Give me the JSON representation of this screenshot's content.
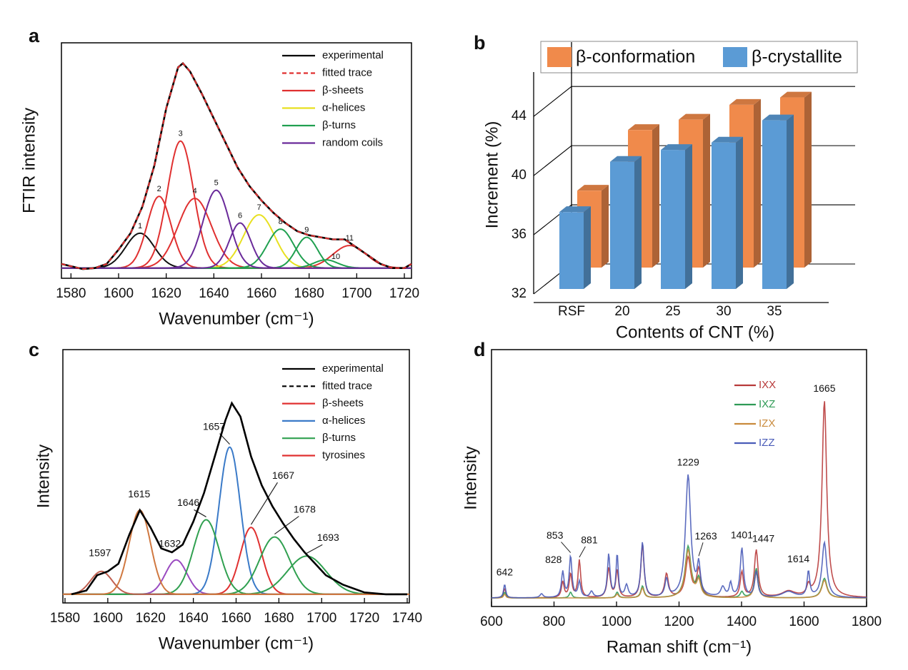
{
  "chart_data": [
    {
      "type": "line",
      "panel": "a",
      "xlabel": "Wavenumber (cm⁻¹)",
      "ylabel": "FTIR intensity",
      "xlim": [
        1576,
        1723
      ],
      "ylim": [
        -0.05,
        1.1
      ],
      "xticks": [
        1580,
        1600,
        1620,
        1640,
        1660,
        1680,
        1700,
        1720
      ],
      "x": [
        1576,
        1585,
        1590,
        1595,
        1600,
        1605,
        1610,
        1615,
        1620,
        1625,
        1627,
        1630,
        1635,
        1640,
        1645,
        1650,
        1655,
        1660,
        1665,
        1670,
        1675,
        1680,
        1685,
        1690,
        1695,
        1700,
        1705,
        1710,
        1715,
        1720,
        1723
      ],
      "series": [
        {
          "name": "experimental",
          "color": "#000000",
          "values": [
            0.02,
            -0.005,
            0,
            0.02,
            0.09,
            0.17,
            0.3,
            0.5,
            0.78,
            0.98,
            1.0,
            0.96,
            0.85,
            0.73,
            0.61,
            0.49,
            0.4,
            0.33,
            0.27,
            0.22,
            0.18,
            0.16,
            0.15,
            0.14,
            0.14,
            0.1,
            0.06,
            0.02,
            0,
            0,
            0.02
          ]
        },
        {
          "name": "fitted trace",
          "color": "#e03030",
          "dash": true,
          "values": [
            0.02,
            -0.005,
            0,
            0.02,
            0.09,
            0.17,
            0.3,
            0.5,
            0.78,
            0.98,
            1.0,
            0.96,
            0.85,
            0.73,
            0.61,
            0.49,
            0.4,
            0.33,
            0.27,
            0.22,
            0.18,
            0.16,
            0.15,
            0.14,
            0.14,
            0.1,
            0.06,
            0.02,
            0,
            0,
            0.02
          ]
        }
      ],
      "components": [
        {
          "name": "β-sheets",
          "color": "#e03030",
          "peaks": [
            {
              "n": 1,
              "center": 1609,
              "height": 0.17,
              "width": 6,
              "color": "#111111"
            },
            {
              "n": 2,
              "center": 1617,
              "height": 0.35,
              "width": 5
            },
            {
              "n": 3,
              "center": 1626,
              "height": 0.62,
              "width": 5.5
            },
            {
              "n": 4,
              "center": 1632,
              "height": 0.34,
              "width": 7
            },
            {
              "n": 11,
              "center": 1697,
              "height": 0.11,
              "width": 7
            }
          ]
        },
        {
          "name": "α-helices",
          "color": "#e8e020",
          "peaks": [
            {
              "n": 7,
              "center": 1659,
              "height": 0.26,
              "width": 6.5
            }
          ]
        },
        {
          "name": "β-turns",
          "color": "#20a050",
          "peaks": [
            {
              "n": 8,
              "center": 1668,
              "height": 0.19,
              "width": 5.5
            },
            {
              "n": 9,
              "center": 1679,
              "height": 0.15,
              "width": 4.5
            },
            {
              "n": 10,
              "center": 1687,
              "height": 0.04,
              "width": 5
            }
          ]
        },
        {
          "name": "random coils",
          "color": "#6a2a9a",
          "peaks": [
            {
              "n": 5,
              "center": 1641,
              "height": 0.38,
              "width": 5.5
            },
            {
              "n": 6,
              "center": 1651,
              "height": 0.22,
              "width": 4.5
            }
          ]
        }
      ]
    },
    {
      "type": "bar",
      "panel": "b",
      "xlabel": "Contents of CNT (%)",
      "ylabel": "Increment (%)",
      "categories": [
        "RSF",
        "20",
        "25",
        "30",
        "35"
      ],
      "ylim": [
        32,
        47
      ],
      "yticks": [
        32,
        36,
        40,
        44
      ],
      "series": [
        {
          "name": "β-conformation",
          "color": "#f08a4b",
          "values": [
            37.2,
            41.3,
            42.0,
            43.0,
            43.5
          ]
        },
        {
          "name": "β-crystallite",
          "color": "#5b9bd5",
          "values": [
            37.2,
            40.6,
            41.4,
            41.9,
            43.4
          ]
        }
      ]
    },
    {
      "type": "line",
      "panel": "c",
      "xlabel": "Wavenumber (cm⁻¹)",
      "ylabel": "Intensity",
      "xlim": [
        1579,
        1741
      ],
      "ylim": [
        -0.045,
        1.28
      ],
      "xticks": [
        1580,
        1600,
        1620,
        1640,
        1660,
        1680,
        1700,
        1720,
        1740
      ],
      "x": [
        1583,
        1590,
        1595,
        1600,
        1605,
        1610,
        1615,
        1620,
        1625,
        1630,
        1635,
        1640,
        1645,
        1650,
        1655,
        1658,
        1662,
        1667,
        1672,
        1677,
        1682,
        1687,
        1692,
        1697,
        1702,
        1710,
        1720,
        1730,
        1740
      ],
      "series": [
        {
          "name": "experimental",
          "color": "#000000",
          "values": [
            0,
            0.02,
            0.1,
            0.12,
            0.16,
            0.31,
            0.44,
            0.35,
            0.24,
            0.22,
            0.26,
            0.38,
            0.53,
            0.72,
            0.91,
            1.0,
            0.93,
            0.72,
            0.57,
            0.46,
            0.37,
            0.29,
            0.22,
            0.16,
            0.1,
            0.05,
            0.01,
            0,
            0
          ]
        },
        {
          "name": "fitted trace",
          "color": "#000000",
          "dash": true,
          "values": [
            0,
            0.02,
            0.1,
            0.12,
            0.16,
            0.31,
            0.44,
            0.35,
            0.24,
            0.22,
            0.26,
            0.38,
            0.53,
            0.72,
            0.91,
            1.0,
            0.93,
            0.72,
            0.57,
            0.46,
            0.37,
            0.29,
            0.22,
            0.16,
            0.1,
            0.05,
            0.01,
            0,
            0
          ]
        }
      ],
      "components": [
        {
          "name": "β-sheets",
          "color": "#e03030",
          "peaks": [
            {
              "center": 1632,
              "height": 0.18,
              "width": 5,
              "color": "#9a4ac0"
            },
            {
              "center": 1667,
              "height": 0.35,
              "width": 5
            }
          ]
        },
        {
          "name": "α-helices",
          "color": "#3a7ac8",
          "peaks": [
            {
              "center": 1657,
              "height": 0.77,
              "width": 5
            }
          ]
        },
        {
          "name": "β-turns",
          "color": "#30a050",
          "peaks": [
            {
              "center": 1646,
              "height": 0.39,
              "width": 6
            },
            {
              "center": 1678,
              "height": 0.3,
              "width": 7
            },
            {
              "center": 1693,
              "height": 0.2,
              "width": 9
            }
          ]
        },
        {
          "name": "tyrosines",
          "color": "#e03030",
          "peaks": [
            {
              "center": 1597,
              "height": 0.12,
              "width": 5,
              "color": "#c06050"
            },
            {
              "center": 1615,
              "height": 0.44,
              "width": 5,
              "color": "#d07840"
            }
          ]
        }
      ]
    },
    {
      "type": "line",
      "panel": "d",
      "xlabel": "Raman shift (cm⁻¹)",
      "ylabel": "Intensity",
      "xlim": [
        600,
        1800
      ],
      "ylim": [
        -0.043,
        1.26
      ],
      "xticks": [
        600,
        800,
        1000,
        1200,
        1400,
        1600,
        1800
      ],
      "series": [
        {
          "name": "IXX",
          "color": "#b83a3a",
          "peaks": [
            [
              642,
              0.05,
              4
            ],
            [
              828,
              0.08,
              5
            ],
            [
              853,
              0.12,
              5
            ],
            [
              881,
              0.19,
              5
            ],
            [
              975,
              0.15,
              6
            ],
            [
              1002,
              0.14,
              5
            ],
            [
              1083,
              0.27,
              6
            ],
            [
              1160,
              0.12,
              7
            ],
            [
              1229,
              0.2,
              10
            ],
            [
              1263,
              0.14,
              8
            ],
            [
              1401,
              0.13,
              6
            ],
            [
              1447,
              0.24,
              7
            ],
            [
              1550,
              0.03,
              25
            ],
            [
              1614,
              0.05,
              6
            ],
            [
              1665,
              1.0,
              9
            ]
          ]
        },
        {
          "name": "IXZ",
          "color": "#2e9a55",
          "peaks": [
            [
              642,
              0.03,
              4
            ],
            [
              853,
              0.03,
              5
            ],
            [
              1002,
              0.03,
              5
            ],
            [
              1083,
              0.06,
              6
            ],
            [
              1229,
              0.26,
              11
            ],
            [
              1263,
              0.09,
              8
            ],
            [
              1401,
              0.03,
              6
            ],
            [
              1447,
              0.15,
              7
            ],
            [
              1665,
              0.1,
              10
            ]
          ]
        },
        {
          "name": "IZX",
          "color": "#c98a3c",
          "peaks": [
            [
              642,
              0.02,
              4
            ],
            [
              1002,
              0.02,
              5
            ],
            [
              1083,
              0.05,
              6
            ],
            [
              1229,
              0.24,
              11
            ],
            [
              1263,
              0.08,
              8
            ],
            [
              1447,
              0.13,
              7
            ],
            [
              1665,
              0.09,
              10
            ]
          ]
        },
        {
          "name": "IZZ",
          "color": "#4a5cb8",
          "peaks": [
            [
              642,
              0.07,
              4
            ],
            [
              760,
              0.02,
              6
            ],
            [
              828,
              0.13,
              5
            ],
            [
              853,
              0.21,
              5
            ],
            [
              881,
              0.08,
              5
            ],
            [
              920,
              0.03,
              6
            ],
            [
              975,
              0.22,
              5
            ],
            [
              1002,
              0.22,
              4
            ],
            [
              1032,
              0.06,
              6
            ],
            [
              1083,
              0.28,
              6
            ],
            [
              1160,
              0.09,
              6
            ],
            [
              1229,
              0.62,
              10
            ],
            [
              1263,
              0.15,
              6
            ],
            [
              1340,
              0.05,
              8
            ],
            [
              1365,
              0.07,
              5
            ],
            [
              1401,
              0.25,
              6
            ],
            [
              1447,
              0.13,
              6
            ],
            [
              1550,
              0.03,
              25
            ],
            [
              1614,
              0.13,
              5
            ],
            [
              1665,
              0.28,
              9
            ]
          ]
        }
      ],
      "peak_labels": [
        642,
        828,
        853,
        881,
        1229,
        1263,
        1401,
        1447,
        1614,
        1665
      ]
    }
  ]
}
